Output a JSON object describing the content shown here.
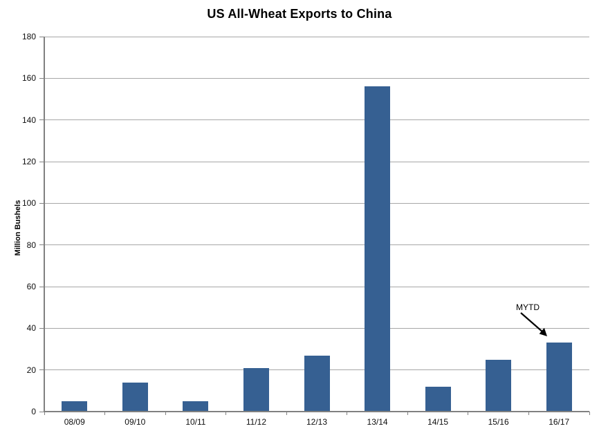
{
  "chart_data": {
    "type": "bar",
    "title": "US All-Wheat Exports to China",
    "xlabel": "",
    "ylabel": "Million Bushels",
    "categories": [
      "08/09",
      "09/10",
      "10/11",
      "11/12",
      "12/13",
      "13/14",
      "14/15",
      "15/16",
      "16/17"
    ],
    "values": [
      5,
      14,
      5,
      21,
      27,
      156,
      12,
      25,
      33
    ],
    "ylim": [
      0,
      180
    ],
    "ytick_step": 20,
    "grid": "horizontal",
    "legend_position": "none",
    "bar_color": "#366092",
    "gridline_color": "#a6a6a6",
    "axis_color": "#808080",
    "text_color": "#0d0d0d",
    "annotation": {
      "text": "MYTD",
      "target_category": "16/17"
    }
  }
}
